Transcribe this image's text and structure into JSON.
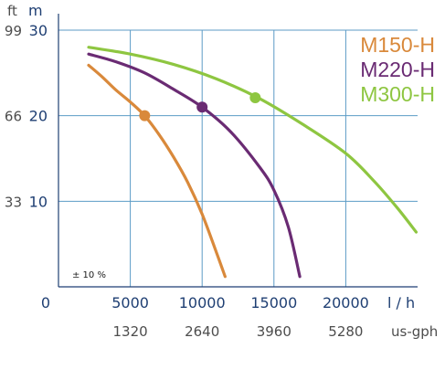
{
  "chart_data": {
    "type": "line",
    "x_unit_primary": "l / h",
    "x_unit_secondary": "us-gph",
    "y_unit_primary": "m",
    "y_unit_secondary": "ft",
    "x_ticks_primary": [
      0,
      5000,
      10000,
      15000,
      20000
    ],
    "x_tick_labels_primary": [
      "0",
      "5000",
      "10000",
      "15000",
      "20000"
    ],
    "x_tick_labels_secondary": [
      "1320",
      "2640",
      "3960",
      "5280"
    ],
    "y_ticks_primary": [
      10,
      20,
      30
    ],
    "y_tick_labels_primary": [
      "10",
      "20",
      "30"
    ],
    "y_tick_labels_secondary": [
      "33",
      "66",
      "99"
    ],
    "xlim": [
      0,
      25000
    ],
    "ylim": [
      0,
      30
    ],
    "grid": true,
    "legend_position": "top-right",
    "annotation": "± 10 %",
    "series": [
      {
        "name": "M150-H",
        "color": "#d9893b",
        "points": [
          [
            2100,
            25.9
          ],
          [
            3000,
            24.6
          ],
          [
            4000,
            23
          ],
          [
            5000,
            21.6
          ],
          [
            6000,
            20
          ],
          [
            7000,
            17.8
          ],
          [
            8000,
            15.2
          ],
          [
            9000,
            12.2
          ],
          [
            10000,
            8.5
          ],
          [
            11000,
            4
          ],
          [
            11600,
            1.2
          ]
        ],
        "marker": [
          6000,
          20
        ]
      },
      {
        "name": "M220-H",
        "color": "#6a2b73",
        "points": [
          [
            2100,
            27.2
          ],
          [
            4000,
            26.3
          ],
          [
            6000,
            25
          ],
          [
            8000,
            23.1
          ],
          [
            10000,
            21
          ],
          [
            12000,
            18.1
          ],
          [
            14000,
            14
          ],
          [
            15000,
            11.3
          ],
          [
            16000,
            7
          ],
          [
            16800,
            1.2
          ]
        ],
        "marker": [
          10000,
          21
        ]
      },
      {
        "name": "M300-H",
        "color": "#8ec641",
        "points": [
          [
            2100,
            28
          ],
          [
            5000,
            27.2
          ],
          [
            8000,
            26
          ],
          [
            11000,
            24.3
          ],
          [
            14000,
            22
          ],
          [
            17000,
            19
          ],
          [
            20000,
            15.6
          ],
          [
            22000,
            12.3
          ],
          [
            23600,
            9.2
          ],
          [
            24900,
            6.4
          ]
        ],
        "marker": [
          13700,
          22.1
        ]
      }
    ]
  }
}
